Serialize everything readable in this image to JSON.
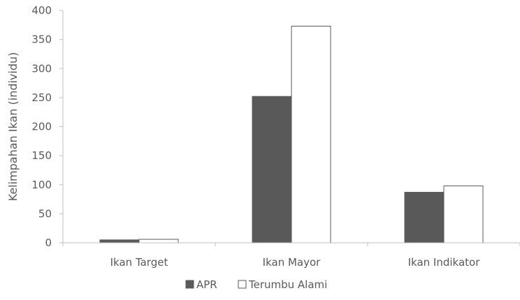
{
  "chart_data": {
    "type": "bar",
    "title": "",
    "xlabel": "",
    "ylabel": "Kelimpahan Ikan (individu)",
    "categories": [
      "Ikan Target",
      "Ikan Mayor",
      "Ikan Indikator"
    ],
    "series": [
      {
        "name": "APR",
        "values": [
          5,
          252,
          87
        ],
        "color": "#595959"
      },
      {
        "name": "Terumbu Alami",
        "values": [
          6,
          373,
          98
        ],
        "color": "#ffffff"
      }
    ],
    "ylim": [
      0,
      400
    ],
    "yticks": [
      0,
      50,
      100,
      150,
      200,
      250,
      300,
      350,
      400
    ],
    "grid": false,
    "legend_position": "bottom"
  }
}
